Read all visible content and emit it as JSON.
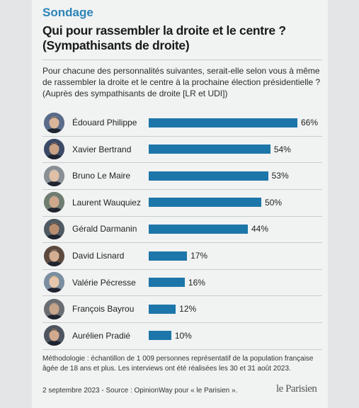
{
  "header": {
    "kicker": "Sondage",
    "title": "Qui pour rassembler la droite et le centre ?\n(Sympathisants de droite)",
    "question": "Pour chacune des personnalités suivantes, serait-elle selon vous à même de rassembler la droite et le centre à la prochaine élection présidentielle ? (Auprès des sympathisants de droite [LR et UDI])"
  },
  "chart_data": {
    "type": "bar",
    "orientation": "horizontal",
    "categories": [
      "Édouard Philippe",
      "Xavier Bertrand",
      "Bruno Le Maire",
      "Laurent Wauquiez",
      "Gérald Darmanin",
      "David Lisnard",
      "Valérie Pécresse",
      "François Bayrou",
      "Aurélien Pradié"
    ],
    "values": [
      66,
      54,
      53,
      50,
      44,
      17,
      16,
      12,
      10
    ],
    "value_labels": [
      "66%",
      "54%",
      "53%",
      "50%",
      "44%",
      "17%",
      "16%",
      "12%",
      "10%"
    ],
    "bar_color": "#1d76a9",
    "xlim": [
      0,
      66
    ]
  },
  "footer": {
    "methodology": "Méthodologie : échantillon de 1 009 personnes représentatif de la population française âgée de 18 ans et plus.  Les interviews ont été réalisées les 30 et 31 août 2023.",
    "source": "2 septembre 2023 - Source : OpinionWay pour « le Parisien ».",
    "logo": "le Parisien"
  }
}
